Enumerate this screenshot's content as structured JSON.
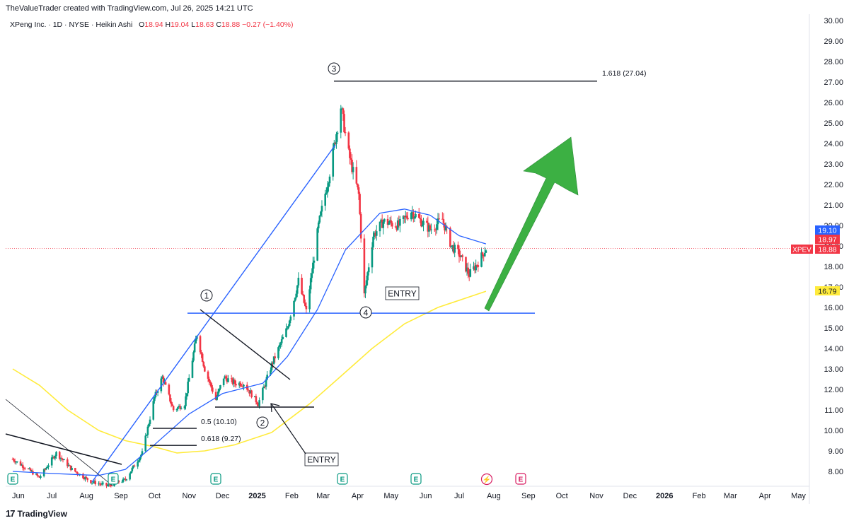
{
  "header": {
    "credit": "TheValueTrader created with TradingView.com, Jul 26, 2025 14:21 UTC"
  },
  "legend": {
    "symbol": "XPeng Inc. · 1D · NYSE · Heikin Ashi",
    "o_label": "O",
    "o": "18.94",
    "h_label": "H",
    "h": "19.04",
    "l_label": "L",
    "l": "18.63",
    "c_label": "C",
    "c": "18.88",
    "change": "−0.27 (−1.40%)"
  },
  "footer": {
    "brand": "TradingView"
  },
  "colors": {
    "up": "#089981",
    "down": "#f23645",
    "ma_blue": "#2962ff",
    "ma_yellow": "#ffeb3b",
    "arrow": "#3cb043"
  },
  "chart_data": {
    "type": "candlestick",
    "ylim": [
      7.5,
      30.2
    ],
    "y_ticks": [
      "8.00",
      "9.00",
      "10.00",
      "11.00",
      "12.00",
      "13.00",
      "14.00",
      "15.00",
      "16.00",
      "17.00",
      "18.00",
      "19.00",
      "20.00",
      "21.00",
      "22.00",
      "23.00",
      "24.00",
      "25.00",
      "26.00",
      "27.00",
      "28.00",
      "29.00",
      "30.00"
    ],
    "x_ticks": [
      "Jun",
      "Jul",
      "Aug",
      "Sep",
      "Oct",
      "Nov",
      "Dec",
      "2025",
      "Feb",
      "Mar",
      "Apr",
      "May",
      "Jun",
      "Jul",
      "Aug",
      "Sep",
      "Oct",
      "Nov",
      "Dec",
      "2026",
      "Feb",
      "Mar",
      "Apr",
      "May"
    ],
    "price_path": [
      [
        "2024-05-27",
        8.6
      ],
      [
        "2024-06-07",
        8.2
      ],
      [
        "2024-06-20",
        7.7
      ],
      [
        "2024-07-05",
        8.9
      ],
      [
        "2024-07-19",
        8.1
      ],
      [
        "2024-08-05",
        7.5
      ],
      [
        "2024-08-20",
        7.3
      ],
      [
        "2024-09-05",
        7.6
      ],
      [
        "2024-09-20",
        8.9
      ],
      [
        "2024-10-01",
        11.6
      ],
      [
        "2024-10-08",
        12.6
      ],
      [
        "2024-10-18",
        11.0
      ],
      [
        "2024-10-28",
        11.3
      ],
      [
        "2024-11-08",
        14.7
      ],
      [
        "2024-11-15",
        13.0
      ],
      [
        "2024-11-25",
        11.5
      ],
      [
        "2024-12-02",
        12.6
      ],
      [
        "2024-12-12",
        12.3
      ],
      [
        "2024-12-20",
        12.3
      ],
      [
        "2025-01-02",
        11.3
      ],
      [
        "2025-01-14",
        13.2
      ],
      [
        "2025-01-28",
        15.0
      ],
      [
        "2025-02-07",
        17.3
      ],
      [
        "2025-02-14",
        15.8
      ],
      [
        "2025-02-25",
        20.0
      ],
      [
        "2025-03-07",
        22.6
      ],
      [
        "2025-03-17",
        25.8
      ],
      [
        "2025-03-24",
        23.5
      ],
      [
        "2025-04-02",
        21.5
      ],
      [
        "2025-04-07",
        16.6
      ],
      [
        "2025-04-15",
        19.5
      ],
      [
        "2025-04-24",
        20.2
      ],
      [
        "2025-05-08",
        20.0
      ],
      [
        "2025-05-19",
        20.7
      ],
      [
        "2025-05-26",
        20.3
      ],
      [
        "2025-06-05",
        19.8
      ],
      [
        "2025-06-16",
        20.3
      ],
      [
        "2025-06-24",
        19.0
      ],
      [
        "2025-07-01",
        18.6
      ],
      [
        "2025-07-10",
        17.6
      ],
      [
        "2025-07-18",
        18.2
      ],
      [
        "2025-07-25",
        18.88
      ]
    ],
    "ma_blue": [
      [
        "2024-05-27",
        8.0
      ],
      [
        "2024-07-01",
        7.9
      ],
      [
        "2024-08-12",
        7.8
      ],
      [
        "2024-09-05",
        8.1
      ],
      [
        "2024-10-01",
        9.3
      ],
      [
        "2024-11-01",
        10.8
      ],
      [
        "2024-12-01",
        11.8
      ],
      [
        "2025-01-06",
        12.3
      ],
      [
        "2025-01-28",
        13.6
      ],
      [
        "2025-02-24",
        15.9
      ],
      [
        "2025-03-21",
        18.8
      ],
      [
        "2025-04-21",
        20.6
      ],
      [
        "2025-05-13",
        20.8
      ],
      [
        "2025-06-05",
        20.5
      ],
      [
        "2025-07-01",
        19.5
      ],
      [
        "2025-07-25",
        19.1
      ]
    ],
    "ma_yellow": [
      [
        "2024-05-27",
        13.0
      ],
      [
        "2024-06-20",
        12.2
      ],
      [
        "2024-07-15",
        11.0
      ],
      [
        "2024-08-12",
        10.0
      ],
      [
        "2024-09-05",
        9.5
      ],
      [
        "2024-10-01",
        9.2
      ],
      [
        "2024-10-21",
        8.9
      ],
      [
        "2024-11-15",
        9.0
      ],
      [
        "2024-12-12",
        9.3
      ],
      [
        "2025-01-14",
        9.9
      ],
      [
        "2025-02-17",
        11.3
      ],
      [
        "2025-03-14",
        12.5
      ],
      [
        "2025-04-14",
        14.0
      ],
      [
        "2025-05-13",
        15.2
      ],
      [
        "2025-06-12",
        16.0
      ],
      [
        "2025-07-25",
        16.79
      ]
    ],
    "annotations": {
      "fib_top": {
        "label": "1.618 (27.04)",
        "value": 27.04
      },
      "fib_mid": {
        "label": "0.5 (10.10)",
        "value": 10.1
      },
      "fib_low": {
        "label": "0.618 (9.27)",
        "value": 9.27
      },
      "support_line": 15.72,
      "entry_top": "ENTRY",
      "entry_bottom": "ENTRY",
      "wave_labels": [
        "1",
        "2",
        "3",
        "4"
      ],
      "earnings_marker": "E",
      "dividend_marker": "E"
    },
    "price_tags": [
      {
        "value": "19.10",
        "color": "#2962ff"
      },
      {
        "value": "18.97",
        "color": "#f23645"
      },
      {
        "symbol": "XPEV",
        "value": "18.88",
        "color": "#f23645"
      },
      {
        "value": "16.79",
        "color": "#ffeb3b"
      }
    ]
  }
}
